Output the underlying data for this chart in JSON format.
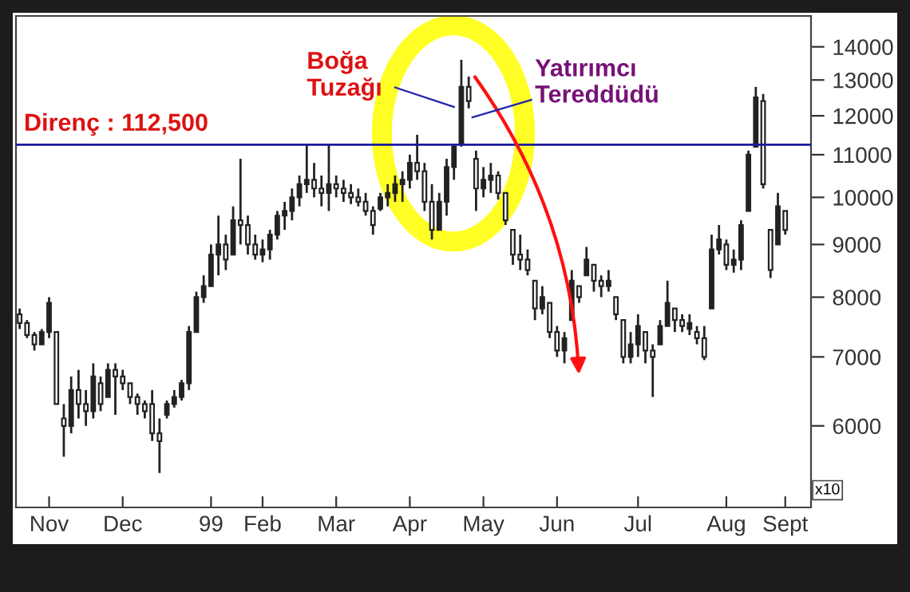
{
  "chart_data": {
    "type": "candlestick",
    "categories": [
      null,
      null,
      null,
      null,
      "Nov",
      null,
      null,
      null,
      null,
      null,
      null,
      null,
      null,
      null,
      "Dec",
      null,
      null,
      null,
      null,
      null,
      null,
      null,
      null,
      null,
      null,
      null,
      "99",
      null,
      null,
      null,
      null,
      null,
      null,
      "Feb",
      null,
      null,
      null,
      null,
      null,
      null,
      null,
      null,
      null,
      "Mar",
      null,
      null,
      null,
      null,
      null,
      null,
      null,
      null,
      null,
      "Apr",
      null,
      null,
      null,
      null,
      null,
      null,
      null,
      null,
      null,
      "May",
      null,
      null,
      null,
      null,
      null,
      null,
      null,
      null,
      null,
      "Jun",
      null,
      null,
      null,
      null,
      null,
      null,
      null,
      null,
      null,
      null,
      "Jul",
      null,
      null,
      null,
      null,
      null,
      null,
      null,
      null,
      null,
      null,
      null,
      "Aug",
      null,
      null,
      null,
      null,
      null,
      null,
      null,
      "Sept"
    ],
    "ohlc": [
      [
        7700,
        7800,
        7450,
        7550
      ],
      [
        7550,
        7600,
        7300,
        7350
      ],
      [
        7350,
        7400,
        7100,
        7200
      ],
      [
        7200,
        7450,
        7200,
        7400
      ],
      [
        7400,
        8000,
        7300,
        7900
      ],
      [
        7400,
        7400,
        6300,
        6300
      ],
      [
        6100,
        6300,
        5600,
        6000
      ],
      [
        6000,
        6700,
        5900,
        6500
      ],
      [
        6500,
        6800,
        6100,
        6300
      ],
      [
        6300,
        6500,
        6000,
        6200
      ],
      [
        6200,
        6900,
        6100,
        6700
      ],
      [
        6600,
        6700,
        6200,
        6300
      ],
      [
        6400,
        6900,
        6400,
        6800
      ],
      [
        6800,
        6900,
        6150,
        6700
      ],
      [
        6700,
        6800,
        6500,
        6600
      ],
      [
        6600,
        6600,
        6300,
        6400
      ],
      [
        6400,
        6450,
        6150,
        6300
      ],
      [
        6300,
        6350,
        6100,
        6200
      ],
      [
        6300,
        6500,
        5800,
        5900
      ],
      [
        5900,
        6100,
        5400,
        5800
      ],
      [
        6150,
        6350,
        6100,
        6300
      ],
      [
        6300,
        6500,
        6250,
        6400
      ],
      [
        6400,
        6650,
        6350,
        6600
      ],
      [
        6600,
        7500,
        6500,
        7400
      ],
      [
        7400,
        8100,
        7400,
        8000
      ],
      [
        8000,
        8400,
        7900,
        8200
      ],
      [
        8200,
        9000,
        8200,
        8800
      ],
      [
        8800,
        9600,
        8400,
        9000
      ],
      [
        9000,
        9200,
        8500,
        8700
      ],
      [
        8800,
        9800,
        8800,
        9500
      ],
      [
        9500,
        10900,
        9000,
        9400
      ],
      [
        9400,
        9600,
        8800,
        9000
      ],
      [
        9000,
        9200,
        8700,
        8800
      ],
      [
        8800,
        9100,
        8650,
        8900
      ],
      [
        8900,
        9300,
        8700,
        9200
      ],
      [
        9200,
        9700,
        9100,
        9600
      ],
      [
        9600,
        9900,
        9300,
        9700
      ],
      [
        9700,
        10200,
        9500,
        10000
      ],
      [
        10000,
        10500,
        9800,
        10300
      ],
      [
        10300,
        11250,
        10100,
        10400
      ],
      [
        10400,
        10800,
        10000,
        10200
      ],
      [
        10200,
        10500,
        9800,
        10100
      ],
      [
        10100,
        11250,
        9700,
        10300
      ],
      [
        10300,
        10500,
        10000,
        10200
      ],
      [
        10200,
        10400,
        9900,
        10100
      ],
      [
        10100,
        10300,
        9850,
        10000
      ],
      [
        10000,
        10200,
        9800,
        9900
      ],
      [
        9900,
        10100,
        9600,
        9700
      ],
      [
        9700,
        9800,
        9200,
        9400
      ],
      [
        9750,
        10100,
        9700,
        10000
      ],
      [
        10000,
        10300,
        9800,
        10100
      ],
      [
        10100,
        10500,
        9900,
        10300
      ],
      [
        10300,
        10600,
        9900,
        10400
      ],
      [
        10400,
        11000,
        10200,
        10800
      ],
      [
        10800,
        11500,
        10400,
        10600
      ],
      [
        10600,
        10800,
        9700,
        9900
      ],
      [
        9900,
        10300,
        9100,
        9300
      ],
      [
        9300,
        10100,
        9300,
        9900
      ],
      [
        9900,
        10900,
        9600,
        10700
      ],
      [
        10700,
        11250,
        10400,
        11200
      ],
      [
        11300,
        13600,
        11200,
        12800
      ],
      [
        12800,
        13100,
        12200,
        12400
      ],
      [
        10900,
        11100,
        9700,
        10200
      ],
      [
        10200,
        10700,
        10000,
        10400
      ],
      [
        10400,
        10800,
        10100,
        10500
      ],
      [
        10500,
        10600,
        9950,
        10100
      ],
      [
        10100,
        10100,
        9400,
        9500
      ],
      [
        9300,
        9300,
        8600,
        8800
      ],
      [
        8800,
        9200,
        8500,
        8700
      ],
      [
        8700,
        8900,
        8400,
        8500
      ],
      [
        8300,
        8300,
        7600,
        7800
      ],
      [
        7800,
        8200,
        7700,
        8000
      ],
      [
        7900,
        7900,
        7300,
        7400
      ],
      [
        7400,
        7500,
        7000,
        7100
      ],
      [
        7100,
        7400,
        6900,
        7300
      ],
      [
        7600,
        8500,
        7600,
        8300
      ],
      [
        8200,
        8200,
        7900,
        8000
      ],
      [
        8400,
        8950,
        8400,
        8700
      ],
      [
        8600,
        8600,
        8100,
        8300
      ],
      [
        8300,
        8400,
        8000,
        8200
      ],
      [
        8200,
        8500,
        8100,
        8300
      ],
      [
        8000,
        8000,
        7600,
        7700
      ],
      [
        7600,
        7600,
        6900,
        7000
      ],
      [
        7000,
        7400,
        6900,
        7200
      ],
      [
        7200,
        7700,
        7000,
        7500
      ],
      [
        7400,
        7400,
        6900,
        7100
      ],
      [
        7100,
        7200,
        6400,
        7000
      ],
      [
        7200,
        7600,
        7200,
        7500
      ],
      [
        7500,
        8300,
        7500,
        7900
      ],
      [
        7800,
        7800,
        7400,
        7600
      ],
      [
        7600,
        7700,
        7400,
        7500
      ],
      [
        7450,
        7700,
        7350,
        7550
      ],
      [
        7400,
        7500,
        7200,
        7300
      ],
      [
        7300,
        7500,
        6950,
        7000
      ],
      [
        7800,
        9200,
        7800,
        8900
      ],
      [
        8900,
        9400,
        8800,
        9100
      ],
      [
        9000,
        9100,
        8500,
        8600
      ],
      [
        8600,
        8900,
        8450,
        8700
      ],
      [
        8700,
        9500,
        8500,
        9400
      ],
      [
        9700,
        11100,
        9700,
        11000
      ],
      [
        11200,
        12800,
        11200,
        12500
      ],
      [
        12400,
        12600,
        10200,
        10300
      ],
      [
        9300,
        9300,
        8350,
        8500
      ],
      [
        9000,
        10100,
        9000,
        9800
      ],
      [
        9700,
        9700,
        9200,
        9300
      ]
    ],
    "color": "#222222",
    "log": true,
    "ylim": [
      5000,
      15000
    ],
    "yticks": [
      6000,
      7000,
      8000,
      9000,
      10000,
      11000,
      12000,
      13000,
      14000
    ],
    "ref_lines": [
      {
        "axis": "y",
        "value": 11250,
        "color": "#1a1aa0"
      }
    ],
    "annotations": [
      "Boğa\nTuzağı",
      "Yatırımcı\nTereddüdü",
      "Direnç : 112,500",
      "x10"
    ],
    "grid": false,
    "legend": false
  }
}
